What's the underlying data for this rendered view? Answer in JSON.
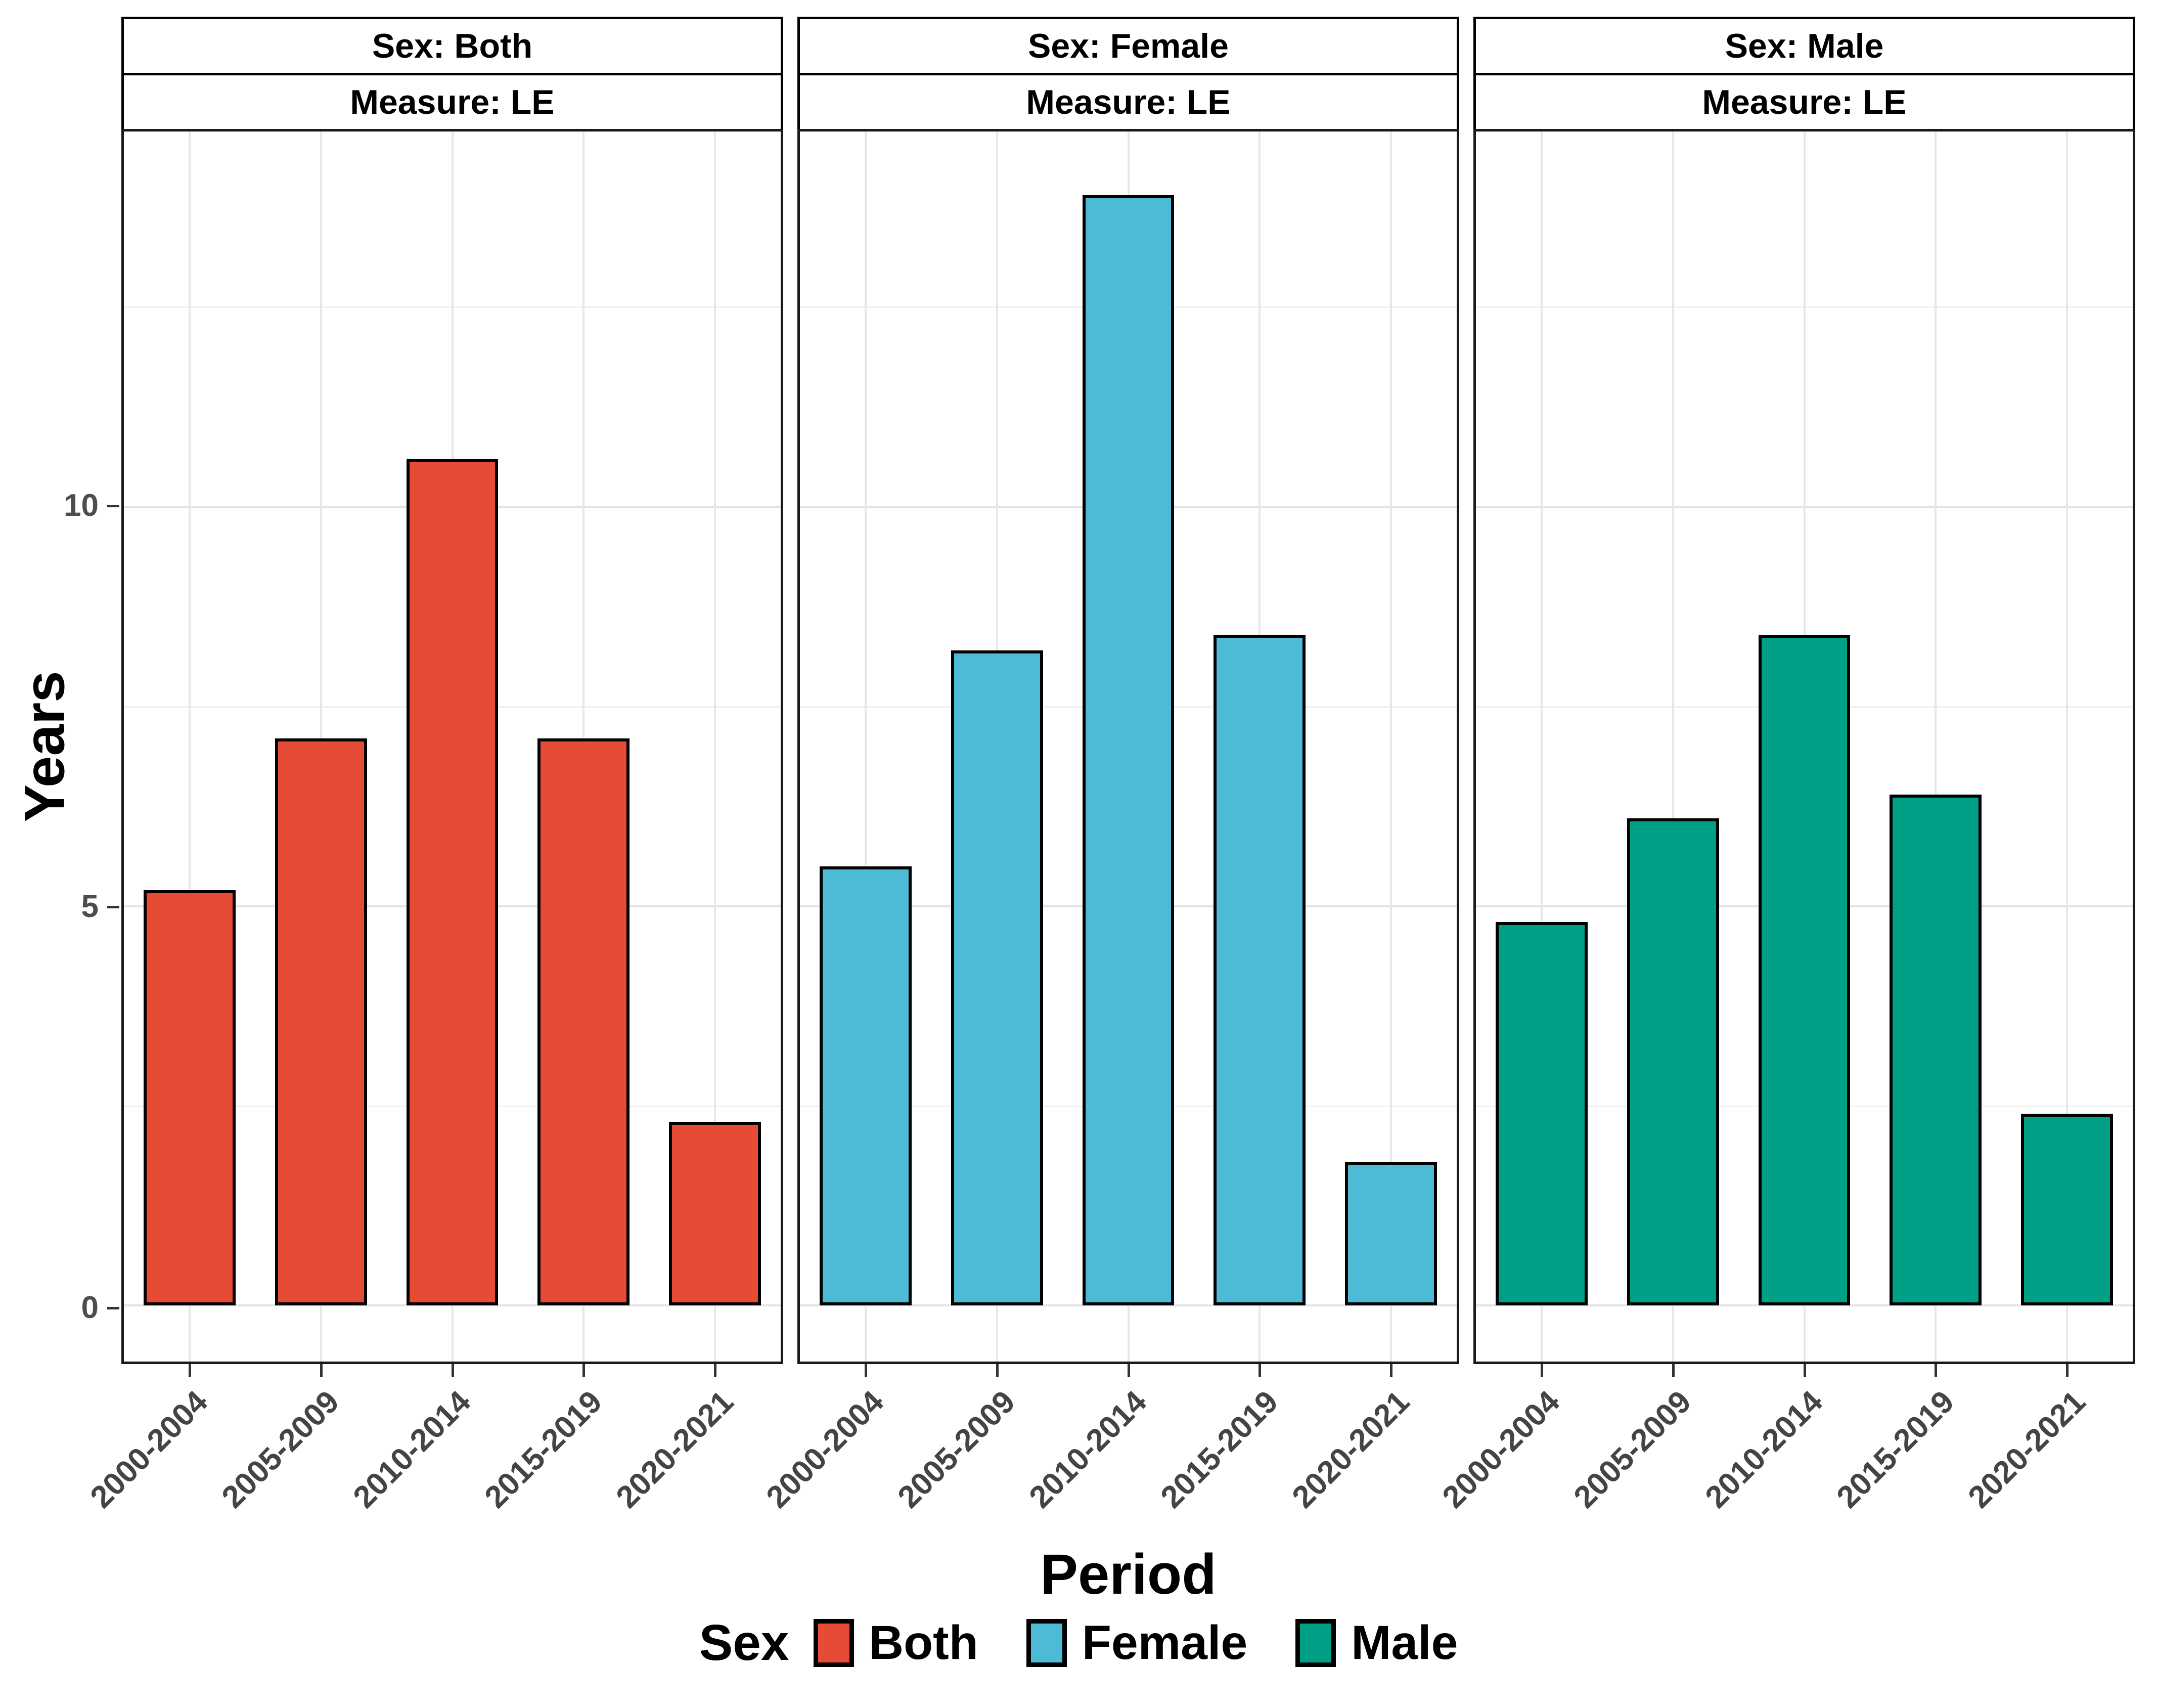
{
  "chart_data": {
    "type": "bar",
    "categories": [
      "2000-2004",
      "2005-2009",
      "2010-2014",
      "2015-2019",
      "2020-2021"
    ],
    "facets": [
      {
        "strip_sex": "Sex: Both",
        "strip_measure": "Measure: LE",
        "series_name": "Both",
        "color": "#E64B35",
        "values": [
          5.2,
          7.1,
          10.6,
          7.1,
          2.3
        ]
      },
      {
        "strip_sex": "Sex: Female",
        "strip_measure": "Measure: LE",
        "series_name": "Female",
        "color": "#4DBBD5",
        "values": [
          5.5,
          8.2,
          13.9,
          8.4,
          1.8
        ]
      },
      {
        "strip_sex": "Sex: Male",
        "strip_measure": "Measure: LE",
        "series_name": "Male",
        "color": "#00A087",
        "values": [
          4.8,
          6.1,
          8.4,
          6.4,
          2.4
        ]
      }
    ],
    "xlabel": "Period",
    "ylabel": "Years",
    "y_ticks": [
      0,
      5,
      10
    ],
    "y_minor_ticks": [
      2.5,
      7.5,
      12.5
    ],
    "ylim": [
      -0.7,
      14.7
    ],
    "grid": true,
    "legend": {
      "position": "bottom",
      "title": "Sex",
      "items": [
        {
          "label": "Both",
          "color": "#E64B35"
        },
        {
          "label": "Female",
          "color": "#4DBBD5"
        },
        {
          "label": "Male",
          "color": "#00A087"
        }
      ]
    },
    "colors": {
      "bar_border": "#000000",
      "panel_border": "#1a1a1a",
      "grid_major": "#e3e3e3",
      "grid_minor": "#efefef",
      "axis_text": "#4d4d4d",
      "title_text": "#000000",
      "background": "#ffffff"
    }
  }
}
